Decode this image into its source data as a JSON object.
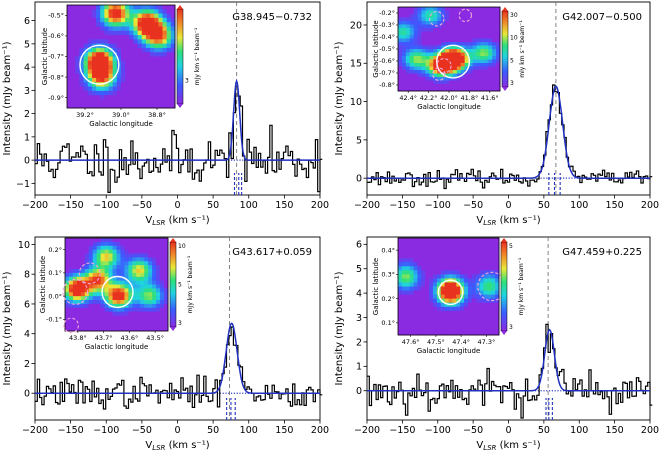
{
  "chart_data": [
    {
      "type": "line",
      "title": "G38.945−0.732",
      "xlabel": "V_LSR (km s⁻¹)",
      "ylabel": "Intensity (mJy beam⁻¹)",
      "xlim": [
        -200,
        200
      ],
      "ylim": [
        -1.5,
        6.8
      ],
      "xticks": [
        -200,
        -150,
        -100,
        -50,
        0,
        50,
        100,
        150,
        200
      ],
      "yticks": [
        -1,
        0,
        1,
        2,
        3,
        4,
        5,
        6
      ],
      "peak": 3.4,
      "v_center": 83,
      "fwhm": 10,
      "noise_rms": 0.55,
      "seed": 11,
      "vlsr_dashed": 83,
      "component_lines": [
        80,
        86,
        90
      ],
      "inset": {
        "xlabel": "Galactic longitude",
        "ylabel": "Galactic latitude",
        "xticks": [
          "39.2°",
          "39.0°",
          "38.8°"
        ],
        "yticks": [
          "-0.5°",
          "-0.6°",
          "-0.7°",
          "-0.8°",
          "-0.9°"
        ],
        "cbar_label": "mJy km s⁻¹ beam⁻¹",
        "cbar_ticks": [
          "3"
        ],
        "blobs": [
          {
            "u": 0.74,
            "v": 0.18,
            "w": 2.0
          },
          {
            "u": 0.45,
            "v": 0.08,
            "w": 1.8
          },
          {
            "u": 0.85,
            "v": 0.3,
            "w": 1.5
          },
          {
            "u": 0.3,
            "v": 0.55,
            "w": 2.2
          },
          {
            "u": 0.32,
            "v": 0.7,
            "w": 1.4
          }
        ],
        "circle": {
          "u": 0.3,
          "v": 0.58,
          "r": 0.18
        }
      }
    },
    {
      "type": "line",
      "title": "G42.007−0.500",
      "xlabel": "V_LSR (km s⁻¹)",
      "ylabel": "Intensity (mJy beam⁻¹)",
      "xlim": [
        -200,
        200
      ],
      "ylim": [
        -2.2,
        23
      ],
      "xticks": [
        -200,
        -150,
        -100,
        -50,
        0,
        50,
        100,
        150,
        200
      ],
      "yticks": [
        0,
        5,
        10,
        15,
        20
      ],
      "peak": 12.0,
      "v_center": 67,
      "fwhm": 22,
      "noise_rms": 0.5,
      "seed": 23,
      "vlsr_dashed": 67,
      "component_lines": [
        57,
        65,
        73
      ],
      "inset": {
        "xlabel": "Galactic longitude",
        "ylabel": "Galactic latitude",
        "xticks": [
          "42.4°",
          "42.2°",
          "42.0°",
          "41.8°",
          "41.6°"
        ],
        "yticks": [
          "-0.2°",
          "-0.3°",
          "-0.4°",
          "-0.5°",
          "-0.6°",
          "-0.7°",
          "-0.8°"
        ],
        "cbar_label": "mly km s⁻¹ beam⁻¹",
        "cbar_ticks": [
          "30",
          "10",
          "5",
          "3"
        ],
        "blobs": [
          {
            "u": 0.55,
            "v": 0.62,
            "w": 2.6
          },
          {
            "u": 0.42,
            "v": 0.7,
            "w": 1.8
          },
          {
            "u": 0.18,
            "v": 0.62,
            "w": 1.0
          },
          {
            "u": 0.32,
            "v": 0.1,
            "w": 0.8
          },
          {
            "u": 0.84,
            "v": 0.55,
            "w": 1.0
          },
          {
            "u": 0.05,
            "v": 0.3,
            "w": 0.8
          }
        ],
        "circle": {
          "u": 0.54,
          "v": 0.65,
          "r": 0.16
        },
        "dashed_circles": [
          {
            "u": 0.38,
            "v": 0.14,
            "r": 0.07
          },
          {
            "u": 0.66,
            "v": 0.1,
            "r": 0.06
          },
          {
            "u": 0.45,
            "v": 0.7,
            "r": 0.07
          },
          {
            "u": 0.4,
            "v": 0.8,
            "r": 0.06
          }
        ]
      }
    },
    {
      "type": "line",
      "title": "G43.617+0.059",
      "xlabel": "V_LSR (km s⁻¹)",
      "ylabel": "Intensity (mJy beam⁻¹)",
      "xlim": [
        -200,
        200
      ],
      "ylim": [
        -1.8,
        10.5
      ],
      "xticks": [
        -200,
        -150,
        -100,
        -50,
        0,
        50,
        100,
        150,
        200
      ],
      "yticks": [
        0,
        2,
        4,
        6,
        8,
        10
      ],
      "peak": 4.7,
      "v_center": 76,
      "fwhm": 18,
      "noise_rms": 0.5,
      "seed": 37,
      "vlsr_dashed": 73,
      "component_lines": [
        69,
        75,
        81
      ],
      "inset": {
        "xlabel": "Galactic longitude",
        "ylabel": "Galactic latitude",
        "xticks": [
          "43.8°",
          "43.7°",
          "43.6°",
          "43.5°"
        ],
        "yticks": [
          "0.2°",
          "0.1°",
          "0.0°",
          "-0.1°"
        ],
        "cbar_label": "mJy km s⁻¹ beam⁻¹",
        "cbar_ticks": [
          "10",
          "5",
          "3"
        ],
        "blobs": [
          {
            "u": 0.12,
            "v": 0.55,
            "w": 2.0
          },
          {
            "u": 0.32,
            "v": 0.45,
            "w": 1.5
          },
          {
            "u": 0.52,
            "v": 0.62,
            "w": 1.8
          },
          {
            "u": 0.4,
            "v": 0.2,
            "w": 1.2
          },
          {
            "u": 0.72,
            "v": 0.35,
            "w": 1.2
          },
          {
            "u": 0.82,
            "v": 0.62,
            "w": 1.0
          }
        ],
        "circle": {
          "u": 0.51,
          "v": 0.58,
          "r": 0.15
        },
        "dashed_circles": [
          {
            "u": 0.1,
            "v": 0.58,
            "r": 0.12
          },
          {
            "u": 0.24,
            "v": 0.38,
            "r": 0.1
          },
          {
            "u": 0.06,
            "v": 0.94,
            "r": 0.07
          }
        ]
      }
    },
    {
      "type": "line",
      "title": "G47.459+0.225",
      "xlabel": "V_LSR (km s⁻¹)",
      "ylabel": "Intensity (mJy beam⁻¹)",
      "xlim": [
        -200,
        200
      ],
      "ylim": [
        -1.2,
        6.3
      ],
      "xticks": [
        -200,
        -150,
        -100,
        -50,
        0,
        50,
        100,
        150,
        200
      ],
      "yticks": [
        0,
        1,
        2,
        3,
        4,
        5,
        6
      ],
      "peak": 2.5,
      "v_center": 58,
      "fwhm": 16,
      "noise_rms": 0.42,
      "seed": 53,
      "vlsr_dashed": 56,
      "component_lines": [
        53,
        57,
        62
      ],
      "inset": {
        "xlabel": "Galactic longitude",
        "ylabel": "Galactic latitude",
        "xticks": [
          "47.6°",
          "47.5°",
          "47.4°",
          "47.3°"
        ],
        "yticks": [
          "0.4°",
          "0.3°",
          "0.2°",
          "0.1°"
        ],
        "cbar_label": "mJy km s⁻¹ beam⁻¹",
        "cbar_ticks": [
          "5",
          "3"
        ],
        "blobs": [
          {
            "u": 0.52,
            "v": 0.55,
            "w": 2.4
          },
          {
            "u": 0.08,
            "v": 0.4,
            "w": 1.0
          },
          {
            "u": 0.9,
            "v": 0.5,
            "w": 0.9
          }
        ],
        "circle": {
          "u": 0.52,
          "v": 0.56,
          "r": 0.12
        },
        "dashed_circles": [
          {
            "u": 0.93,
            "v": 0.5,
            "r": 0.14
          }
        ]
      }
    }
  ]
}
